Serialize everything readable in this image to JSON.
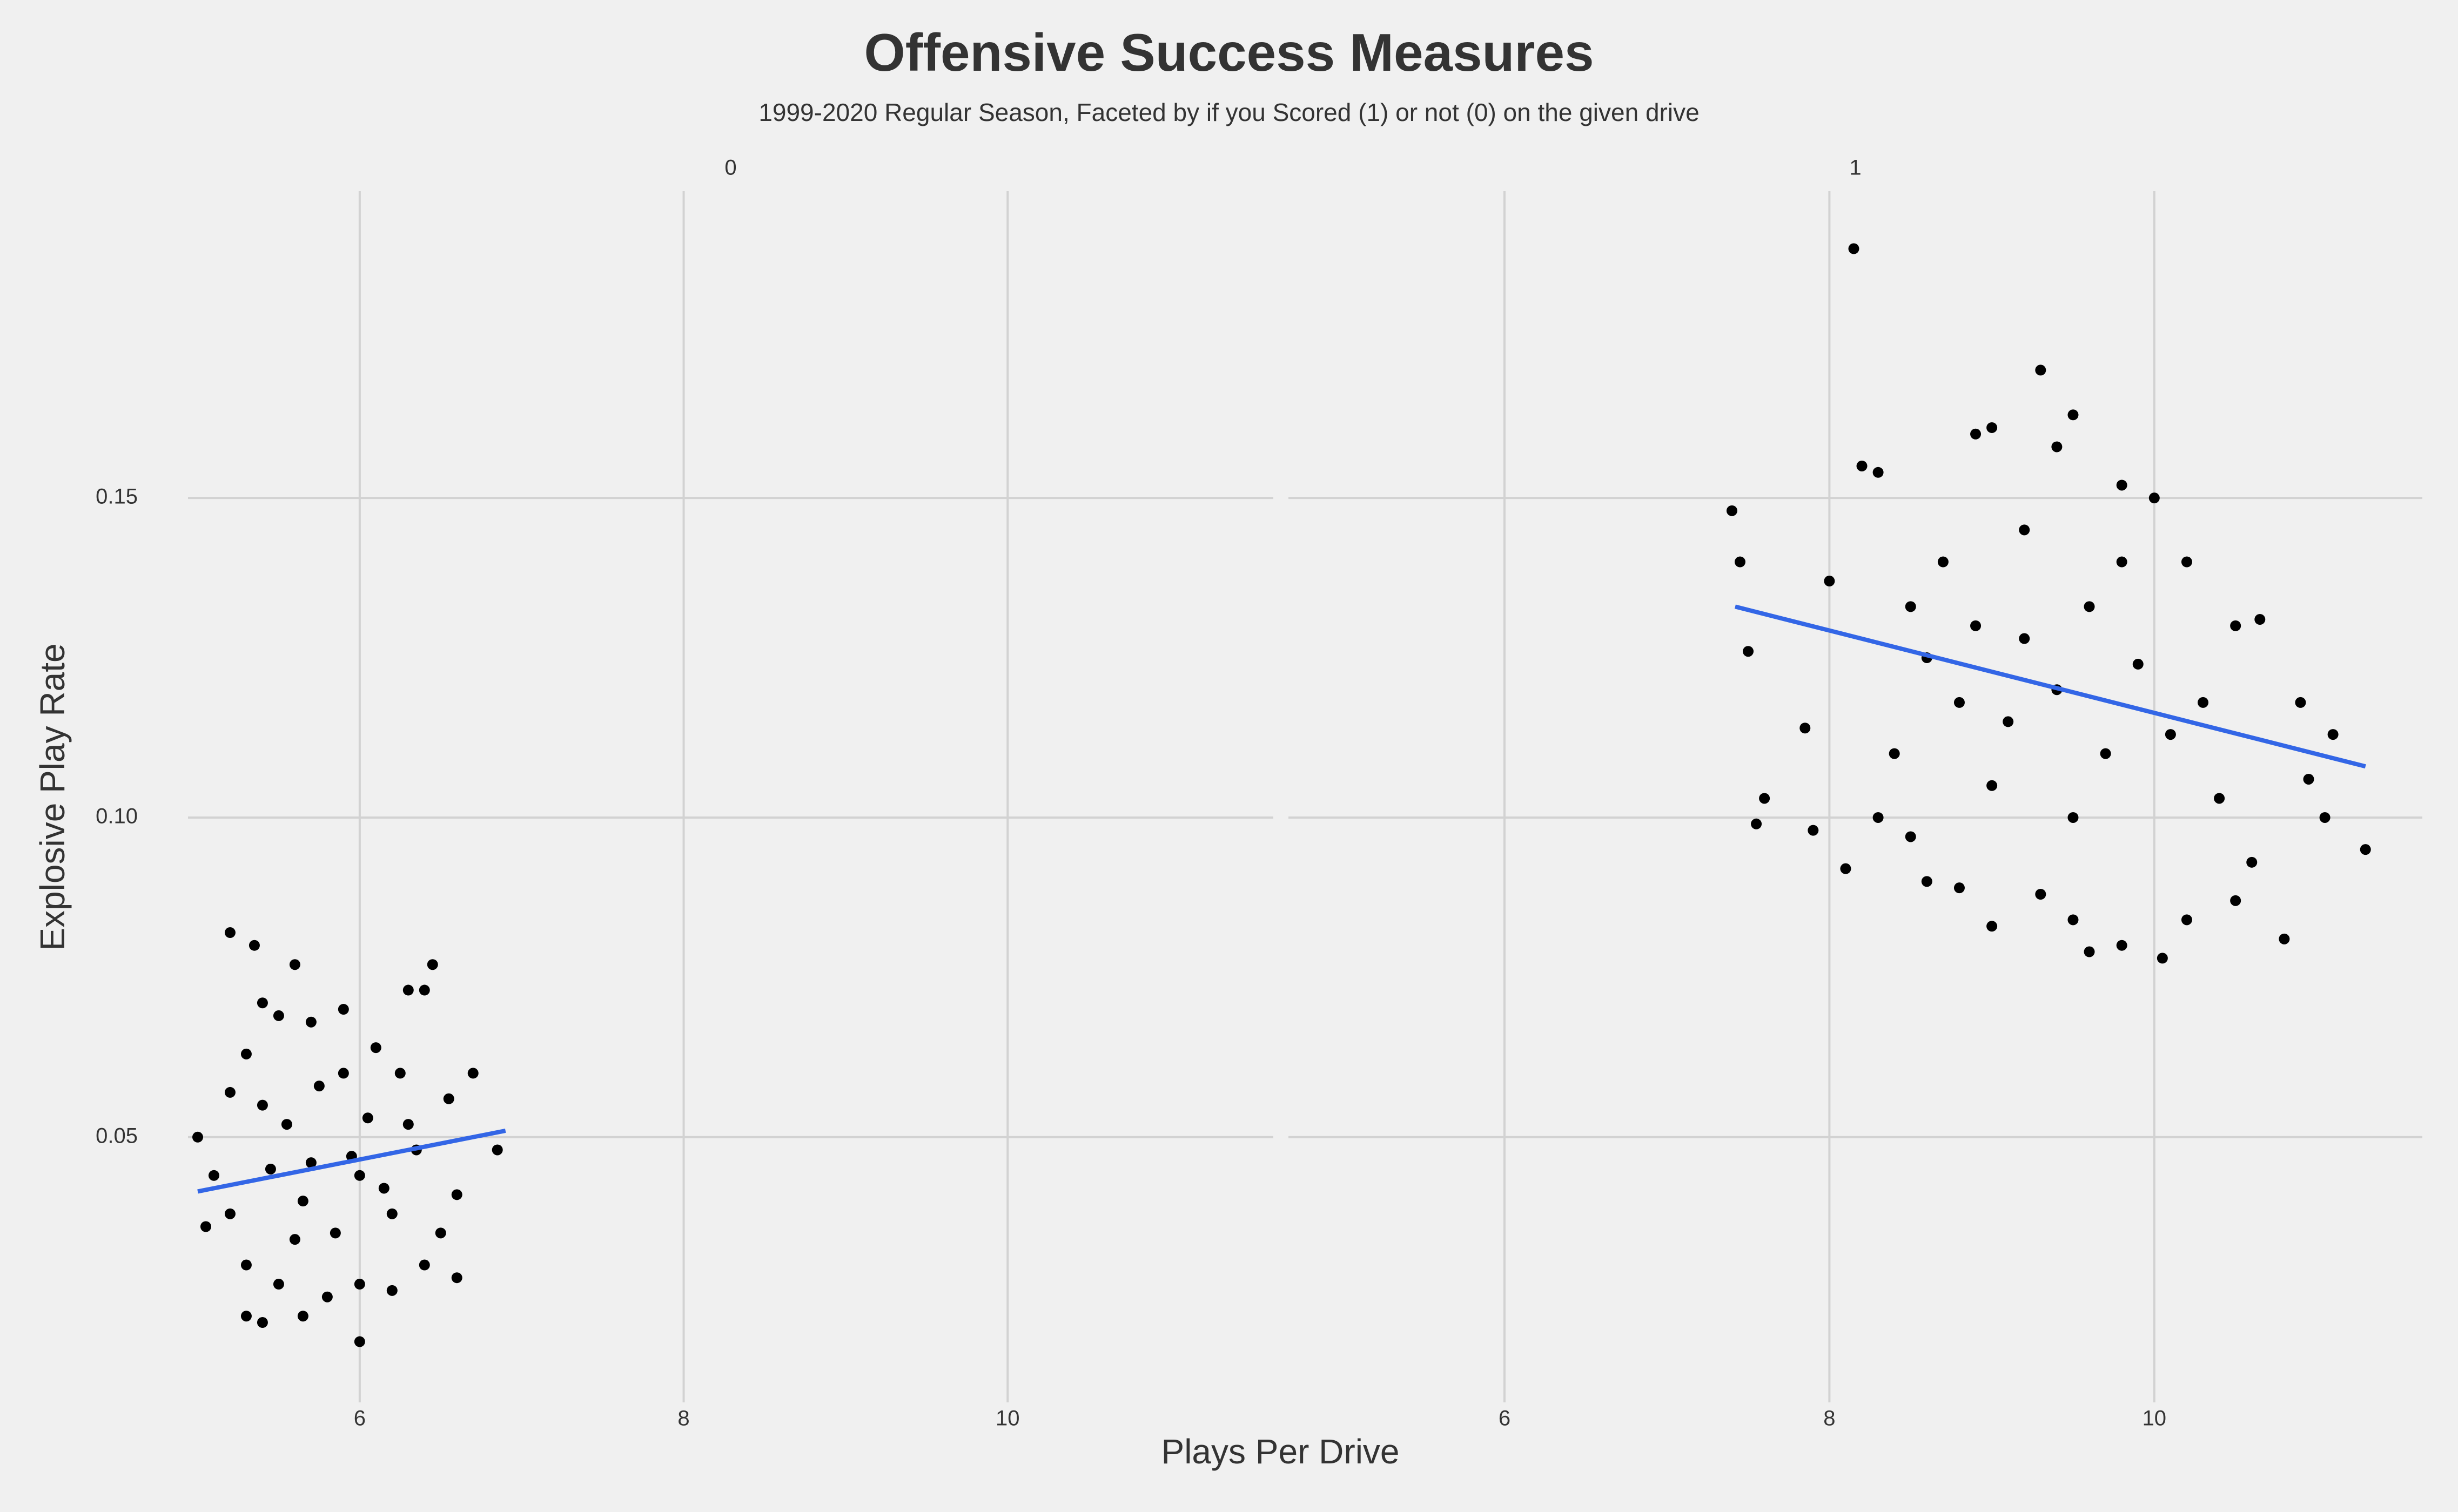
{
  "chart_data": {
    "type": "scatter",
    "title": "Offensive Success Measures",
    "subtitle": "1999-2020 Regular Season, Faceted by if you Scored (1) or not (0) on the given drive",
    "xlabel": "Plays Per Drive",
    "ylabel": "Explosive Play Rate",
    "ylim": [
      0.0085,
      0.198
    ],
    "yticks": [
      0.05,
      {
        "value": 0.1,
        "label": "0.10"
      },
      0.15
    ],
    "xticks": [
      6,
      8,
      10
    ],
    "grid": true,
    "point_color": "#000000",
    "trend_color": "#3366e6",
    "facets": [
      {
        "label": "0",
        "xlim": [
          4.94,
          11.64
        ],
        "x": [
          5.0,
          5.2,
          5.35,
          5.6,
          6.45,
          6.0,
          5.3,
          5.4,
          5.65,
          6.85,
          6.7,
          6.6,
          5.05,
          5.1,
          5.2,
          5.3,
          5.4,
          5.5,
          5.7,
          5.9,
          6.1,
          6.3,
          6.4,
          6.55,
          6.6,
          6.5,
          6.4,
          6.2,
          6.0,
          5.8,
          5.5,
          5.3,
          5.2,
          5.45,
          5.55,
          5.65,
          5.75,
          5.85,
          5.95,
          6.05,
          6.15,
          6.25,
          6.35,
          5.6,
          5.9,
          6.2,
          5.7,
          6.0,
          5.4,
          6.3
        ],
        "y": [
          0.05,
          0.082,
          0.08,
          0.077,
          0.077,
          0.018,
          0.022,
          0.021,
          0.022,
          0.048,
          0.06,
          0.028,
          0.036,
          0.044,
          0.057,
          0.063,
          0.071,
          0.069,
          0.068,
          0.07,
          0.064,
          0.073,
          0.073,
          0.056,
          0.041,
          0.035,
          0.03,
          0.026,
          0.027,
          0.025,
          0.027,
          0.03,
          0.038,
          0.045,
          0.052,
          0.04,
          0.058,
          0.035,
          0.047,
          0.053,
          0.042,
          0.06,
          0.048,
          0.034,
          0.06,
          0.038,
          0.046,
          0.044,
          0.055,
          0.052
        ],
        "trend": {
          "x": [
            5.0,
            6.9
          ],
          "y": [
            0.0415,
            0.051
          ]
        }
      },
      {
        "label": "1",
        "xlim": [
          4.67,
          11.65
        ],
        "x": [
          8.15,
          9.3,
          9.5,
          7.4,
          7.45,
          7.5,
          7.6,
          7.55,
          7.85,
          7.9,
          8.1,
          8.0,
          8.2,
          8.3,
          8.9,
          9.0,
          9.4,
          9.8,
          10.0,
          10.2,
          10.5,
          10.65,
          10.9,
          11.1,
          11.3,
          11.05,
          10.95,
          10.8,
          10.6,
          10.5,
          10.2,
          10.05,
          9.8,
          9.6,
          9.5,
          9.3,
          9.0,
          8.8,
          8.6,
          8.5,
          8.3,
          8.4,
          8.6,
          8.7,
          8.9,
          9.1,
          9.2,
          9.4,
          9.6,
          9.7,
          9.9,
          10.1,
          10.3,
          9.0,
          9.5,
          8.8,
          9.2,
          10.4,
          8.5,
          9.8
        ],
        "y": [
          0.189,
          0.17,
          0.163,
          0.148,
          0.14,
          0.126,
          0.103,
          0.099,
          0.114,
          0.098,
          0.092,
          0.137,
          0.155,
          0.154,
          0.16,
          0.161,
          0.158,
          0.152,
          0.15,
          0.14,
          0.13,
          0.131,
          0.118,
          0.113,
          0.095,
          0.1,
          0.106,
          0.081,
          0.093,
          0.087,
          0.084,
          0.078,
          0.08,
          0.079,
          0.084,
          0.088,
          0.083,
          0.089,
          0.09,
          0.097,
          0.1,
          0.11,
          0.125,
          0.14,
          0.13,
          0.115,
          0.128,
          0.12,
          0.133,
          0.11,
          0.124,
          0.113,
          0.118,
          0.105,
          0.1,
          0.118,
          0.145,
          0.103,
          0.133,
          0.14
        ],
        "trend": {
          "x": [
            7.42,
            11.3
          ],
          "y": [
            0.133,
            0.108
          ]
        }
      }
    ]
  }
}
